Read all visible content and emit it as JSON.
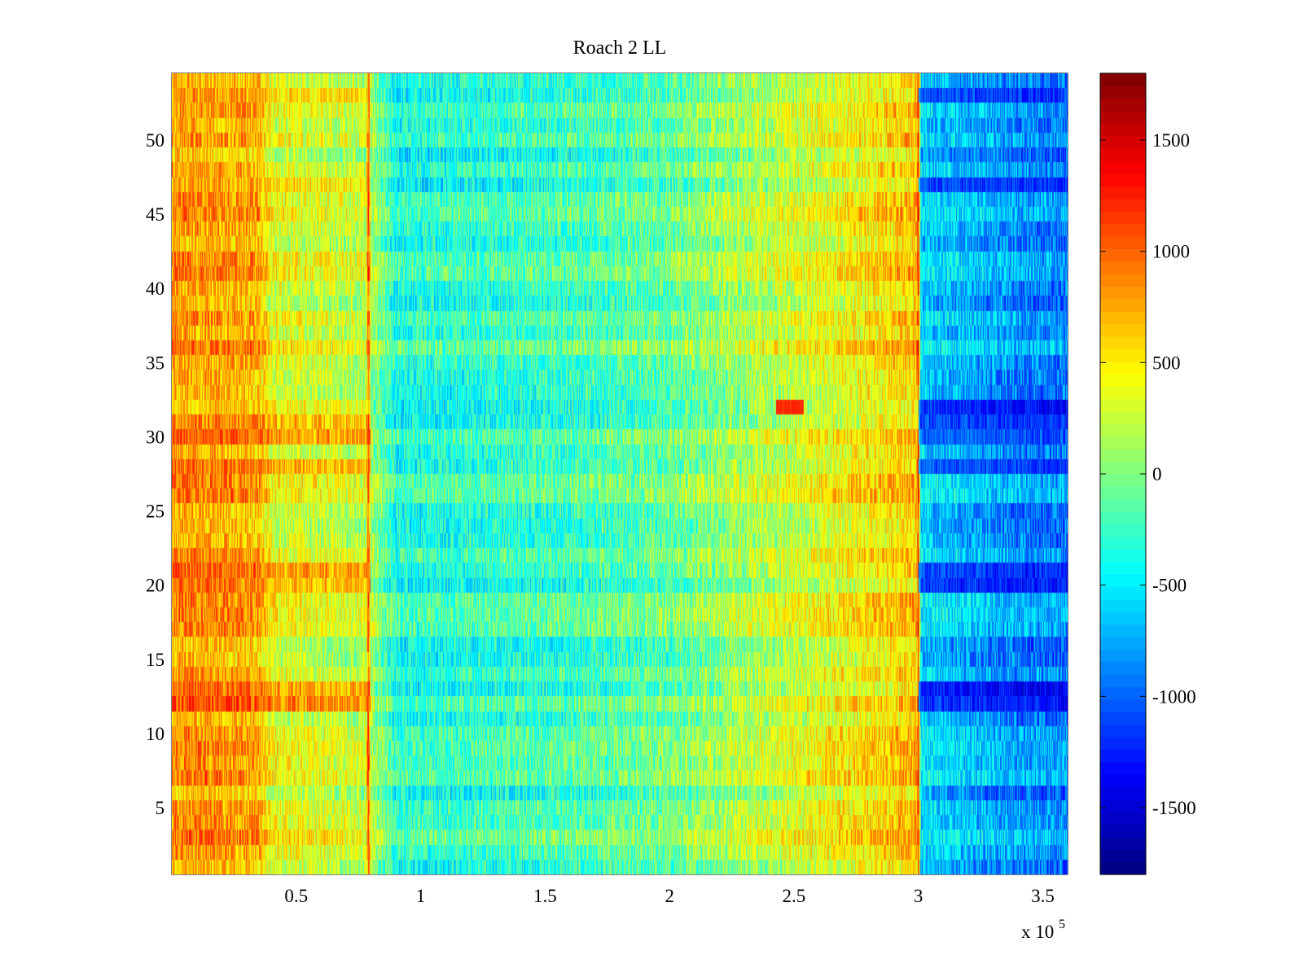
{
  "chart_data": {
    "type": "heatmap",
    "title": "Roach 2 LL",
    "xlabel": "",
    "ylabel": "",
    "x_exponent_label": {
      "base": "x 10",
      "exponent": "5"
    },
    "xlim": [
      0,
      3.6
    ],
    "ylim": [
      0.5,
      54.5
    ],
    "rows": 54,
    "x_ticks": [
      {
        "value": 0.5,
        "label": "0.5"
      },
      {
        "value": 1,
        "label": "1"
      },
      {
        "value": 1.5,
        "label": "1.5"
      },
      {
        "value": 2,
        "label": "2"
      },
      {
        "value": 2.5,
        "label": "2.5"
      },
      {
        "value": 3,
        "label": "3"
      },
      {
        "value": 3.5,
        "label": "3.5"
      }
    ],
    "y_ticks": [
      {
        "value": 5,
        "label": "5"
      },
      {
        "value": 10,
        "label": "10"
      },
      {
        "value": 15,
        "label": "15"
      },
      {
        "value": 20,
        "label": "20"
      },
      {
        "value": 25,
        "label": "25"
      },
      {
        "value": 30,
        "label": "30"
      },
      {
        "value": 35,
        "label": "35"
      },
      {
        "value": 40,
        "label": "40"
      },
      {
        "value": 45,
        "label": "45"
      },
      {
        "value": 50,
        "label": "50"
      }
    ],
    "colorbar": {
      "colormap": "jet",
      "clim": [
        -1800,
        1800
      ],
      "ticks": [
        {
          "value": 1500,
          "label": "1500"
        },
        {
          "value": 1000,
          "label": "1000"
        },
        {
          "value": 500,
          "label": "500"
        },
        {
          "value": 0,
          "label": "0"
        },
        {
          "value": -500,
          "label": "-500"
        },
        {
          "value": -1000,
          "label": "-1000"
        },
        {
          "value": -1500,
          "label": "-1500"
        }
      ]
    },
    "column_profile": [
      {
        "x": 0.0,
        "value": 800
      },
      {
        "x": 0.35,
        "value": 700
      },
      {
        "x": 0.4,
        "value": 350
      },
      {
        "x": 0.78,
        "value": 200
      },
      {
        "x": 0.79,
        "value": 1100
      },
      {
        "x": 0.8,
        "value": 150
      },
      {
        "x": 0.9,
        "value": -350
      },
      {
        "x": 1.5,
        "value": -250
      },
      {
        "x": 2.0,
        "value": -100
      },
      {
        "x": 2.3,
        "value": 150
      },
      {
        "x": 2.9,
        "value": 550
      },
      {
        "x": 2.995,
        "value": 650
      },
      {
        "x": 3.0,
        "value": 1300
      },
      {
        "x": 3.01,
        "value": -600
      },
      {
        "x": 3.4,
        "value": -850
      },
      {
        "x": 3.6,
        "value": -900
      }
    ],
    "row_offsets": [
      {
        "rows": [
          12,
          13
        ],
        "left_value": 1300,
        "right_value": -1600
      },
      {
        "rows": [
          20,
          21
        ],
        "left_value": 1250,
        "right_value": -1400
      },
      {
        "rows": [
          28,
          30,
          31
        ],
        "left_value": 1150,
        "right_value": -1300
      },
      {
        "rows": [
          32
        ],
        "left_value": 700,
        "right_value": -1500
      },
      {
        "rows": [
          47,
          53
        ],
        "left_value": 900,
        "right_value": -1300
      }
    ],
    "annotations": [
      {
        "text": "",
        "x_range": [
          2.43,
          2.54
        ],
        "row": 32,
        "value": 1200
      }
    ]
  }
}
